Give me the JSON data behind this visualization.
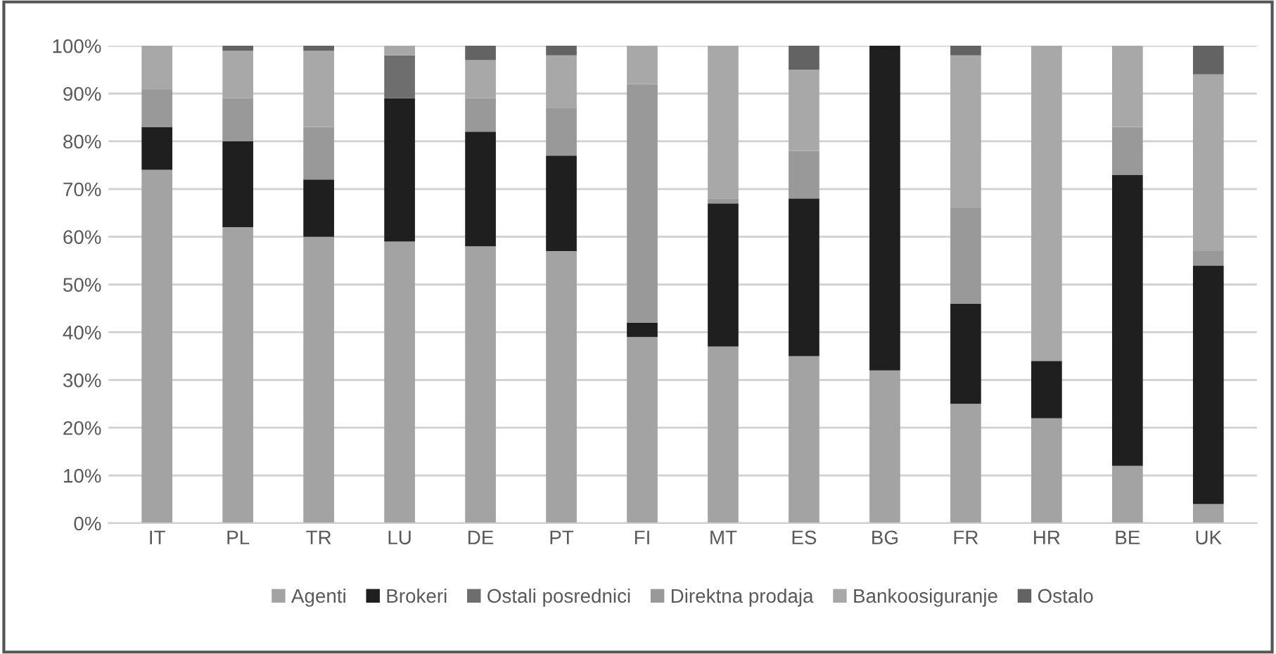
{
  "chart_data": {
    "type": "bar",
    "stacked": true,
    "categories": [
      "IT",
      "PL",
      "TR",
      "LU",
      "DE",
      "PT",
      "FI",
      "MT",
      "ES",
      "BG",
      "FR",
      "HR",
      "BE",
      "UK"
    ],
    "series": [
      {
        "name": "Agenti",
        "color": "#a3a3a3",
        "values": [
          74,
          62,
          60,
          59,
          58,
          57,
          39,
          37,
          35,
          32,
          25,
          22,
          12,
          4
        ]
      },
      {
        "name": "Brokeri",
        "color": "#1f1f1f",
        "values": [
          9,
          18,
          12,
          30,
          24,
          20,
          3,
          30,
          33,
          68,
          21,
          12,
          61,
          50
        ]
      },
      {
        "name": "Ostali posrednici",
        "color": "#6e6e6e",
        "values": [
          0,
          0,
          0,
          9,
          0,
          0,
          0,
          0,
          0,
          0,
          0,
          0,
          0,
          0
        ]
      },
      {
        "name": "Direktna prodaja",
        "color": "#999999",
        "values": [
          8,
          9,
          11,
          0,
          7,
          10,
          50,
          1,
          10,
          0,
          20,
          0,
          10,
          3
        ]
      },
      {
        "name": "Bankoosiguranje",
        "color": "#a8a8a8",
        "values": [
          9,
          10,
          16,
          2,
          8,
          11,
          8,
          32,
          17,
          0,
          32,
          66,
          17,
          37
        ]
      },
      {
        "name": "Ostalo",
        "color": "#636363",
        "values": [
          0,
          1,
          1,
          0,
          3,
          2,
          0,
          0,
          5,
          0,
          2,
          0,
          0,
          6
        ]
      }
    ],
    "ylim": [
      0,
      100
    ],
    "yticks": [
      {
        "value": 0,
        "label": "0%"
      },
      {
        "value": 10,
        "label": "10%"
      },
      {
        "value": 20,
        "label": "20%"
      },
      {
        "value": 30,
        "label": "30%"
      },
      {
        "value": 40,
        "label": "40%"
      },
      {
        "value": 50,
        "label": "50%"
      },
      {
        "value": 60,
        "label": "60%"
      },
      {
        "value": 70,
        "label": "70%"
      },
      {
        "value": 80,
        "label": "80%"
      },
      {
        "value": 90,
        "label": "90%"
      },
      {
        "value": 100,
        "label": "100%"
      }
    ],
    "grid": "y",
    "legend": "bottom"
  }
}
